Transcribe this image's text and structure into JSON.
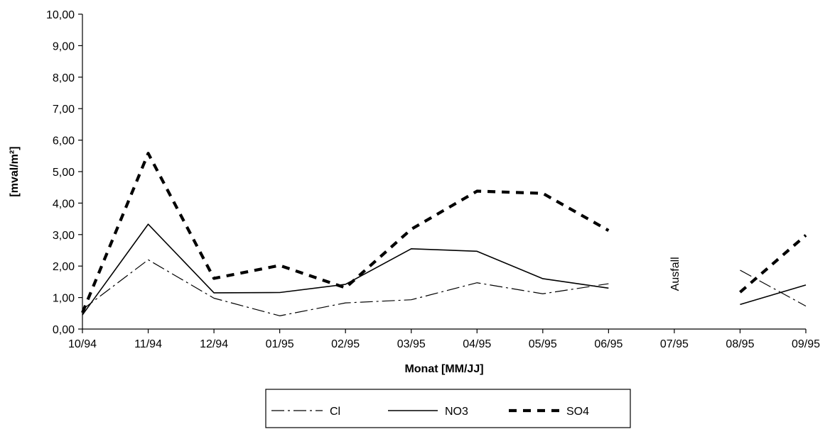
{
  "chart_data": {
    "type": "line",
    "title": "",
    "xlabel": "Monat [MM/JJ]",
    "ylabel": "[mval/m²]",
    "categories": [
      "10/94",
      "11/94",
      "12/94",
      "01/95",
      "02/95",
      "03/95",
      "04/95",
      "05/95",
      "06/95",
      "07/95",
      "08/95",
      "09/95"
    ],
    "ylim": [
      0,
      10
    ],
    "yticks": [
      "0,00",
      "1,00",
      "2,00",
      "3,00",
      "4,00",
      "5,00",
      "6,00",
      "7,00",
      "8,00",
      "9,00",
      "10,00"
    ],
    "ytick_values": [
      0,
      1,
      2,
      3,
      4,
      5,
      6,
      7,
      8,
      9,
      10
    ],
    "grid": false,
    "legend_position": "bottom",
    "series": [
      {
        "name": "Cl",
        "style": "dash-dot",
        "color": "#000000",
        "values": [
          0.62,
          2.2,
          0.98,
          0.42,
          0.83,
          0.93,
          1.47,
          1.12,
          1.44,
          null,
          1.87,
          0.73
        ]
      },
      {
        "name": "NO3",
        "style": "solid",
        "color": "#000000",
        "values": [
          0.45,
          3.33,
          1.15,
          1.16,
          1.42,
          2.55,
          2.47,
          1.6,
          1.3,
          null,
          0.78,
          1.4
        ]
      },
      {
        "name": "SO4",
        "style": "dashed",
        "color": "#000000",
        "values": [
          0.52,
          5.58,
          1.61,
          2.02,
          1.31,
          3.17,
          4.38,
          4.31,
          3.13,
          null,
          1.17,
          2.98
        ]
      }
    ],
    "annotations": [
      {
        "text": "Ausfall",
        "x": "07/95",
        "y": 1.75,
        "rotation": -90
      }
    ]
  }
}
